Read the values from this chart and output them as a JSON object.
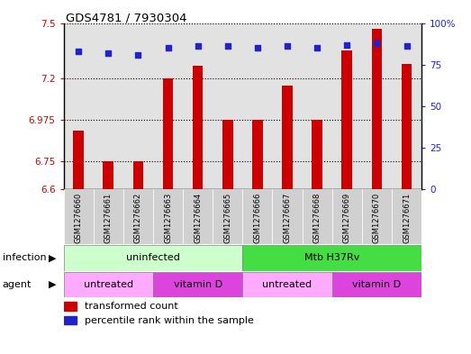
{
  "title": "GDS4781 / 7930304",
  "samples": [
    "GSM1276660",
    "GSM1276661",
    "GSM1276662",
    "GSM1276663",
    "GSM1276664",
    "GSM1276665",
    "GSM1276666",
    "GSM1276667",
    "GSM1276668",
    "GSM1276669",
    "GSM1276670",
    "GSM1276671"
  ],
  "transformed_counts": [
    6.92,
    6.75,
    6.75,
    7.2,
    7.27,
    6.975,
    6.975,
    7.16,
    6.975,
    7.35,
    7.47,
    7.28
  ],
  "percentile_ranks": [
    83,
    82,
    81,
    85,
    86,
    86,
    85,
    86,
    85,
    87,
    88,
    86
  ],
  "ymin": 6.6,
  "ymax": 7.5,
  "yticks_left": [
    6.6,
    6.75,
    6.975,
    7.2,
    7.5
  ],
  "yticks_right": [
    0,
    25,
    50,
    75,
    100
  ],
  "yright_min": 0,
  "yright_max": 100,
  "bar_color": "#cc0000",
  "dot_color": "#2222cc",
  "infection_groups": [
    {
      "label": "uninfected",
      "start": 0,
      "end": 5,
      "color": "#ccffcc"
    },
    {
      "label": "Mtb H37Rv",
      "start": 6,
      "end": 11,
      "color": "#44dd44"
    }
  ],
  "agent_groups": [
    {
      "label": "untreated",
      "start": 0,
      "end": 2,
      "color": "#ffaaff"
    },
    {
      "label": "vitamin D",
      "start": 3,
      "end": 5,
      "color": "#dd44dd"
    },
    {
      "label": "untreated",
      "start": 6,
      "end": 8,
      "color": "#ffaaff"
    },
    {
      "label": "vitamin D",
      "start": 9,
      "end": 11,
      "color": "#dd44dd"
    }
  ],
  "legend_bar_label": "transformed count",
  "legend_dot_label": "percentile rank within the sample",
  "infection_label": "infection",
  "agent_label": "agent",
  "col_bg_color": "#d0d0d0",
  "bar_width": 0.35
}
